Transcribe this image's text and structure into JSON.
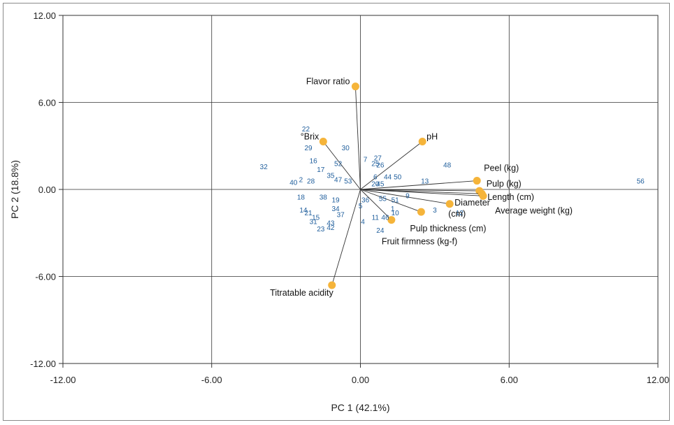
{
  "chart_data": {
    "type": "scatter",
    "subtype": "biplot",
    "xlabel": "PC 1 (42.1%)",
    "ylabel": "PC 2 (18.8%)",
    "xlim": [
      -12,
      12
    ],
    "ylim": [
      -12,
      12
    ],
    "xticks": [
      "-12.00",
      "-6.00",
      "0.00",
      "6.00",
      "12.00"
    ],
    "yticks": [
      "12.00",
      "6.00",
      "0.00",
      "-6.00",
      "-12.00"
    ],
    "grid": true,
    "colors": {
      "vector_point": "#f5b43a",
      "observation": "#1f5e9c",
      "grid": "#333333",
      "vector_line": "#333333"
    },
    "variables": [
      {
        "name": "Flavor ratio",
        "x": -0.2,
        "y": 7.1
      },
      {
        "name": "°Brix",
        "x": -1.5,
        "y": 3.3
      },
      {
        "name": "pH",
        "x": 2.5,
        "y": 3.3
      },
      {
        "name": "Peel (kg)",
        "x": 4.7,
        "y": 0.6
      },
      {
        "name": "Pulp (kg)",
        "x": 4.8,
        "y": -0.1
      },
      {
        "name": "Length (cm)",
        "x": 4.9,
        "y": -0.3
      },
      {
        "name": "Average weight (kg)",
        "x": 4.95,
        "y": -0.45
      },
      {
        "name": "Diameter (cm)",
        "x": 3.6,
        "y": -1.0
      },
      {
        "name": "Pulp thickness (cm)",
        "x": 2.45,
        "y": -1.55
      },
      {
        "name": "Fruit firmness (kg-f)",
        "x": 1.25,
        "y": -2.1
      },
      {
        "name": "Titratable acidity",
        "x": -1.15,
        "y": -6.6
      }
    ],
    "observations": [
      {
        "label": "22",
        "x": -2.2,
        "y": 4.2
      },
      {
        "label": "29",
        "x": -2.1,
        "y": 2.9
      },
      {
        "label": "30",
        "x": -0.6,
        "y": 2.9
      },
      {
        "label": "16",
        "x": -1.9,
        "y": 2.0
      },
      {
        "label": "52",
        "x": -0.9,
        "y": 1.8
      },
      {
        "label": "17",
        "x": -1.6,
        "y": 1.4
      },
      {
        "label": "35",
        "x": -1.2,
        "y": 1.0
      },
      {
        "label": "47",
        "x": -0.9,
        "y": 0.7
      },
      {
        "label": "53",
        "x": -0.5,
        "y": 0.6
      },
      {
        "label": "32",
        "x": -3.9,
        "y": 1.6
      },
      {
        "label": "40",
        "x": -2.7,
        "y": 0.5
      },
      {
        "label": "2",
        "x": -2.4,
        "y": 0.7
      },
      {
        "label": "28",
        "x": -2.0,
        "y": 0.6
      },
      {
        "label": "18",
        "x": -2.4,
        "y": -0.5
      },
      {
        "label": "38",
        "x": -1.5,
        "y": -0.5
      },
      {
        "label": "19",
        "x": -1.0,
        "y": -0.7
      },
      {
        "label": "34",
        "x": -1.0,
        "y": -1.3
      },
      {
        "label": "37",
        "x": -0.8,
        "y": -1.7
      },
      {
        "label": "14",
        "x": -2.3,
        "y": -1.4
      },
      {
        "label": "21",
        "x": -2.1,
        "y": -1.6
      },
      {
        "label": "15",
        "x": -1.8,
        "y": -1.9
      },
      {
        "label": "31",
        "x": -1.9,
        "y": -2.2
      },
      {
        "label": "43",
        "x": -1.2,
        "y": -2.3
      },
      {
        "label": "23",
        "x": -1.6,
        "y": -2.7
      },
      {
        "label": "42",
        "x": -1.2,
        "y": -2.6
      },
      {
        "label": "7",
        "x": 0.2,
        "y": 2.1
      },
      {
        "label": "27",
        "x": 0.7,
        "y": 2.2
      },
      {
        "label": "25",
        "x": 0.6,
        "y": 1.8
      },
      {
        "label": "26",
        "x": 0.8,
        "y": 1.7
      },
      {
        "label": "6",
        "x": 0.6,
        "y": 0.9
      },
      {
        "label": "44",
        "x": 1.1,
        "y": 0.9
      },
      {
        "label": "50",
        "x": 1.5,
        "y": 0.9
      },
      {
        "label": "20",
        "x": 0.6,
        "y": 0.4
      },
      {
        "label": "45",
        "x": 0.8,
        "y": 0.4
      },
      {
        "label": "13",
        "x": 2.6,
        "y": 0.6
      },
      {
        "label": "48",
        "x": 3.5,
        "y": 1.7
      },
      {
        "label": "56",
        "x": 11.3,
        "y": 0.6
      },
      {
        "label": "36",
        "x": 0.2,
        "y": -0.7
      },
      {
        "label": "55",
        "x": 0.9,
        "y": -0.6
      },
      {
        "label": "51",
        "x": 1.4,
        "y": -0.7
      },
      {
        "label": "9",
        "x": 1.9,
        "y": -0.4
      },
      {
        "label": "5",
        "x": 0.0,
        "y": -1.1
      },
      {
        "label": "1",
        "x": 1.3,
        "y": -1.3
      },
      {
        "label": "10",
        "x": 1.4,
        "y": -1.6
      },
      {
        "label": "11",
        "x": 0.6,
        "y": -1.9
      },
      {
        "label": "46",
        "x": 1.0,
        "y": -1.9
      },
      {
        "label": "4",
        "x": 0.1,
        "y": -2.2
      },
      {
        "label": "24",
        "x": 0.8,
        "y": -2.8
      },
      {
        "label": "3",
        "x": 3.0,
        "y": -1.4
      },
      {
        "label": "12",
        "x": 4.0,
        "y": -1.6
      }
    ]
  }
}
